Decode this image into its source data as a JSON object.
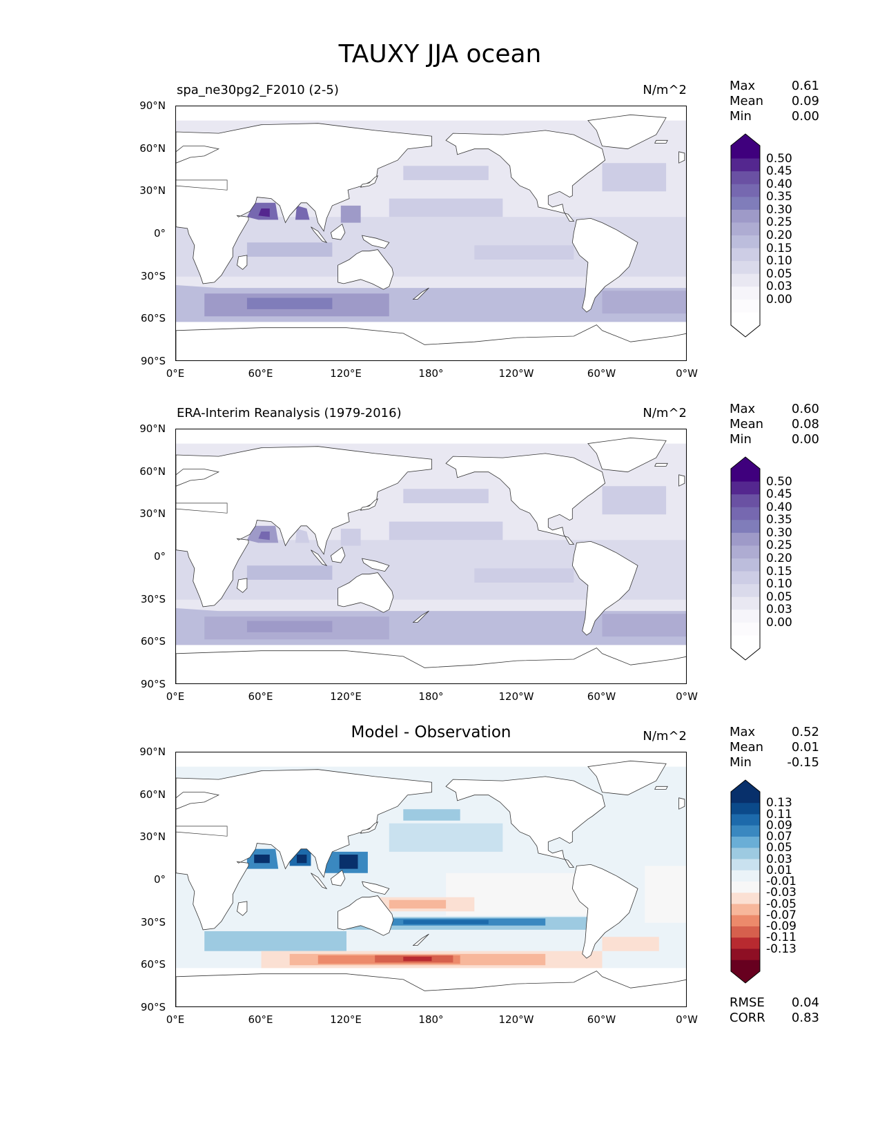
{
  "title": "TAUXY JJA ocean",
  "lat_ticks": [
    "90°N",
    "60°N",
    "30°N",
    "0°",
    "30°S",
    "60°S",
    "90°S"
  ],
  "lon_ticks": [
    "0°E",
    "60°E",
    "120°E",
    "180°",
    "120°W",
    "60°W",
    "0°W"
  ],
  "panels": [
    {
      "title": "spa_ne30pg2_F2010 (2-5)",
      "units": "N/m^2",
      "stats": {
        "max_label": "Max",
        "max": "0.61",
        "mean_label": "Mean",
        "mean": "0.09",
        "min_label": "Min",
        "min": "0.00"
      },
      "colormap": "Purples",
      "colorbar_levels": [
        "0.50",
        "0.45",
        "0.40",
        "0.35",
        "0.30",
        "0.25",
        "0.20",
        "0.15",
        "0.10",
        "0.05",
        "0.03",
        "0.00"
      ],
      "colorbar_colors": [
        "#3f007d",
        "#54278f",
        "#6a51a3",
        "#7668b0",
        "#807dba",
        "#9e9ac8",
        "#aeacd2",
        "#bcbddc",
        "#cdcde5",
        "#dadaeb",
        "#e9e8f2",
        "#f6f5fa",
        "#fcfbfd",
        "#ffffff"
      ]
    },
    {
      "title": "ERA-Interim Reanalysis (1979-2016)",
      "units": "N/m^2",
      "stats": {
        "max_label": "Max",
        "max": "0.60",
        "mean_label": "Mean",
        "mean": "0.08",
        "min_label": "Min",
        "min": "0.00"
      },
      "colormap": "Purples",
      "colorbar_levels": [
        "0.50",
        "0.45",
        "0.40",
        "0.35",
        "0.30",
        "0.25",
        "0.20",
        "0.15",
        "0.10",
        "0.05",
        "0.03",
        "0.00"
      ],
      "colorbar_colors": [
        "#3f007d",
        "#54278f",
        "#6a51a3",
        "#7668b0",
        "#807dba",
        "#9e9ac8",
        "#aeacd2",
        "#bcbddc",
        "#cdcde5",
        "#dadaeb",
        "#e9e8f2",
        "#f6f5fa",
        "#fcfbfd",
        "#ffffff"
      ]
    },
    {
      "title": "Model - Observation",
      "units": "N/m^2",
      "stats": {
        "max_label": "Max",
        "max": "0.52",
        "mean_label": "Mean",
        "mean": "0.01",
        "min_label": "Min",
        "min": "-0.15"
      },
      "colormap": "RdBu",
      "colorbar_levels": [
        "0.13",
        "0.11",
        "0.09",
        "0.07",
        "0.05",
        "0.03",
        "0.01",
        "-0.01",
        "-0.03",
        "-0.05",
        "-0.07",
        "-0.09",
        "-0.11",
        "-0.13"
      ],
      "colorbar_colors": [
        "#08306b",
        "#0b4a8a",
        "#1d6aab",
        "#3a88c0",
        "#6aaed6",
        "#9dcae1",
        "#c9e1ef",
        "#ebf3f8",
        "#f7f7f7",
        "#fbe0d3",
        "#f7b79b",
        "#ec8a6b",
        "#d6604d",
        "#b82a30",
        "#8e0f24",
        "#67001f"
      ],
      "metrics": {
        "rmse_label": "RMSE",
        "rmse": "0.04",
        "corr_label": "CORR",
        "corr": "0.83"
      }
    }
  ]
}
